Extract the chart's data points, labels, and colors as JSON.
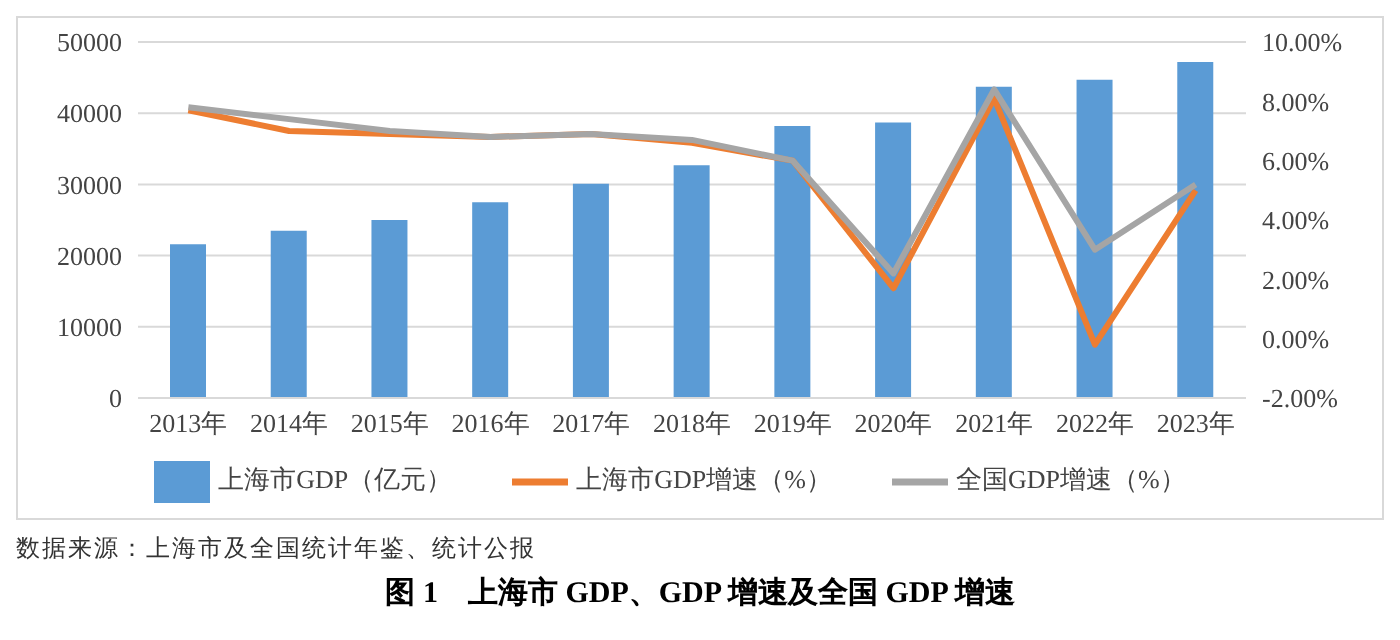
{
  "chart_data": {
    "type": "bar",
    "title": "图 1　上海市 GDP、GDP 增速及全国 GDP 增速",
    "annotations": [
      "数据来源：上海市及全国统计年鉴、统计公报"
    ],
    "categories": [
      "2013年",
      "2014年",
      "2015年",
      "2016年",
      "2017年",
      "2018年",
      "2019年",
      "2020年",
      "2021年",
      "2022年",
      "2023年"
    ],
    "series": [
      {
        "name": "上海市GDP（亿元）",
        "color": "#5b9bd5",
        "values": [
          21600,
          23500,
          25000,
          27500,
          30100,
          32700,
          38200,
          38700,
          43700,
          44700,
          47200
        ]
      },
      {
        "name": "上海市GDP增速（%）",
        "type": "line",
        "axis": "y2",
        "color": "#ed7d31",
        "values": [
          7.7,
          7.0,
          6.9,
          6.8,
          6.9,
          6.6,
          6.0,
          1.7,
          8.1,
          -0.2,
          5.0
        ]
      },
      {
        "name": "全国GDP增速（%）",
        "type": "line",
        "axis": "y2",
        "color": "#a5a5a5",
        "values": [
          7.8,
          7.4,
          7.0,
          6.8,
          6.9,
          6.7,
          6.0,
          2.2,
          8.4,
          3.0,
          5.2
        ]
      }
    ],
    "ylim": [
      0,
      50000
    ],
    "yticks": [
      0,
      10000,
      20000,
      30000,
      40000,
      50000
    ],
    "y2lim": [
      -2,
      10
    ],
    "y2ticks": [
      {
        "value": -2,
        "label": "-2.00%"
      },
      {
        "value": 0,
        "label": "0.00%"
      },
      {
        "value": 2,
        "label": "2.00%"
      },
      {
        "value": 4,
        "label": "4.00%"
      },
      {
        "value": 6,
        "label": "6.00%"
      },
      {
        "value": 8,
        "label": "8.00%"
      },
      {
        "value": 10,
        "label": "10.00%"
      }
    ],
    "grid": "y",
    "legend": "bottom",
    "marker": "none",
    "line_style": "solid"
  }
}
